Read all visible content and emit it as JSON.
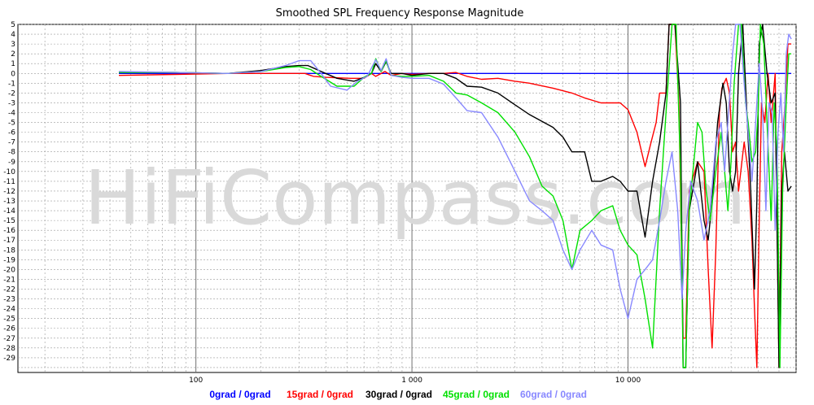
{
  "chart_data": {
    "type": "line",
    "title": "Smoothed SPL Frequency Response Magnitude",
    "xscale": "log",
    "xlim": [
      15,
      60000
    ],
    "ylim": [
      -30,
      5
    ],
    "grid": true,
    "legend_position": "bottom",
    "watermark": "HiFiCompass.com",
    "x_tick_labels": [
      {
        "value": 100,
        "label": "100"
      },
      {
        "value": 1000,
        "label": "1 000"
      },
      {
        "value": 10000,
        "label": "10 000"
      }
    ],
    "y_ticks": [
      5,
      4,
      3,
      2,
      1,
      0,
      -1,
      -2,
      -3,
      -4,
      -5,
      -6,
      -7,
      -8,
      -9,
      -10,
      -11,
      -12,
      -13,
      -14,
      -15,
      -16,
      -17,
      -18,
      -19,
      -20,
      -21,
      -22,
      -23,
      -24,
      -25,
      -26,
      -27,
      -28,
      -29
    ],
    "series": [
      {
        "name": "0grad / 0grad",
        "color": "#0000ff",
        "points": [
          [
            44,
            0
          ],
          [
            50,
            0
          ],
          [
            80,
            0
          ],
          [
            200,
            0
          ],
          [
            500,
            0
          ],
          [
            1000,
            0
          ],
          [
            2000,
            0
          ],
          [
            5000,
            0
          ],
          [
            10000,
            0
          ],
          [
            20000,
            0
          ],
          [
            45000,
            0
          ],
          [
            57000,
            0
          ]
        ]
      },
      {
        "name": "15grad / 0grad",
        "color": "#ff0000",
        "points": [
          [
            44,
            -0.2
          ],
          [
            80,
            -0.1
          ],
          [
            140,
            0
          ],
          [
            240,
            0
          ],
          [
            320,
            0
          ],
          [
            350,
            -0.3
          ],
          [
            400,
            -0.4
          ],
          [
            520,
            -0.5
          ],
          [
            600,
            -0.5
          ],
          [
            650,
            0
          ],
          [
            680,
            -0.3
          ],
          [
            750,
            0.2
          ],
          [
            800,
            -0.2
          ],
          [
            900,
            0
          ],
          [
            1000,
            -0.1
          ],
          [
            1200,
            0
          ],
          [
            1400,
            0
          ],
          [
            1600,
            0.1
          ],
          [
            1800,
            -0.3
          ],
          [
            2100,
            -0.6
          ],
          [
            2500,
            -0.5
          ],
          [
            3000,
            -0.8
          ],
          [
            3500,
            -1
          ],
          [
            4500,
            -1.5
          ],
          [
            5500,
            -2
          ],
          [
            6300,
            -2.5
          ],
          [
            7500,
            -3
          ],
          [
            8700,
            -3
          ],
          [
            9200,
            -3
          ],
          [
            10000,
            -3.7
          ],
          [
            11000,
            -6
          ],
          [
            12000,
            -9.5
          ],
          [
            12800,
            -7
          ],
          [
            13500,
            -5
          ],
          [
            14000,
            -2
          ],
          [
            15000,
            -2
          ],
          [
            15500,
            5
          ],
          [
            16500,
            5
          ],
          [
            17200,
            -3
          ],
          [
            18000,
            -27
          ],
          [
            18500,
            -27
          ],
          [
            19200,
            -12
          ],
          [
            21000,
            -9
          ],
          [
            22500,
            -10
          ],
          [
            23500,
            -20
          ],
          [
            24500,
            -28
          ],
          [
            25500,
            -18
          ],
          [
            26500,
            -4
          ],
          [
            27200,
            -1.5
          ],
          [
            28500,
            -0.5
          ],
          [
            29500,
            -2
          ],
          [
            30500,
            -8
          ],
          [
            31500,
            -7
          ],
          [
            32500,
            -12
          ],
          [
            34500,
            -7
          ],
          [
            36000,
            -10
          ],
          [
            37500,
            -17
          ],
          [
            38500,
            -24
          ],
          [
            39500,
            -30
          ],
          [
            40500,
            -15
          ],
          [
            41500,
            -3
          ],
          [
            43000,
            -5
          ],
          [
            44500,
            0
          ],
          [
            46000,
            -5
          ],
          [
            48000,
            0
          ],
          [
            50000,
            -30
          ],
          [
            51500,
            -8
          ],
          [
            53000,
            -4
          ],
          [
            55000,
            3
          ],
          [
            57000,
            3
          ]
        ]
      },
      {
        "name": "30grad / 0grad",
        "color": "#000000",
        "points": [
          [
            44,
            0.1
          ],
          [
            80,
            0.1
          ],
          [
            140,
            0
          ],
          [
            200,
            0.3
          ],
          [
            260,
            0.7
          ],
          [
            300,
            0.8
          ],
          [
            330,
            0.8
          ],
          [
            380,
            0.2
          ],
          [
            450,
            -0.5
          ],
          [
            540,
            -0.8
          ],
          [
            600,
            -0.4
          ],
          [
            650,
            0
          ],
          [
            680,
            1
          ],
          [
            720,
            0.2
          ],
          [
            760,
            1.2
          ],
          [
            800,
            0
          ],
          [
            900,
            0
          ],
          [
            1000,
            -0.2
          ],
          [
            1200,
            0
          ],
          [
            1400,
            0
          ],
          [
            1600,
            -0.5
          ],
          [
            1800,
            -1.3
          ],
          [
            2100,
            -1.4
          ],
          [
            2500,
            -2
          ],
          [
            3000,
            -3.2
          ],
          [
            3500,
            -4.2
          ],
          [
            4500,
            -5.5
          ],
          [
            5000,
            -6.5
          ],
          [
            5500,
            -8
          ],
          [
            6300,
            -8
          ],
          [
            6800,
            -11
          ],
          [
            7500,
            -11
          ],
          [
            8500,
            -10.5
          ],
          [
            9200,
            -11
          ],
          [
            10000,
            -12
          ],
          [
            11000,
            -12
          ],
          [
            12000,
            -16.7
          ],
          [
            13000,
            -11
          ],
          [
            14000,
            -7
          ],
          [
            15000,
            -2
          ],
          [
            15500,
            5
          ],
          [
            16500,
            5
          ],
          [
            17500,
            -3
          ],
          [
            18000,
            -30
          ],
          [
            18500,
            -30
          ],
          [
            19200,
            -14
          ],
          [
            21000,
            -9
          ],
          [
            22500,
            -15
          ],
          [
            23500,
            -17
          ],
          [
            24500,
            -13
          ],
          [
            26000,
            -5
          ],
          [
            27500,
            -1
          ],
          [
            28500,
            -3
          ],
          [
            29500,
            -10
          ],
          [
            30500,
            -12
          ],
          [
            31500,
            -10
          ],
          [
            32500,
            0
          ],
          [
            34000,
            5
          ],
          [
            35500,
            -4
          ],
          [
            37000,
            -12
          ],
          [
            38500,
            -22
          ],
          [
            39500,
            -13
          ],
          [
            40500,
            3
          ],
          [
            42000,
            5
          ],
          [
            44000,
            0
          ],
          [
            46000,
            -3
          ],
          [
            48000,
            -2
          ],
          [
            50000,
            -30
          ],
          [
            51500,
            -12
          ],
          [
            53000,
            -8
          ],
          [
            55000,
            -12
          ],
          [
            57000,
            -11.5
          ]
        ]
      },
      {
        "name": "45grad / 0grad",
        "color": "#00e000",
        "points": [
          [
            44,
            0.1
          ],
          [
            80,
            0.1
          ],
          [
            140,
            0
          ],
          [
            200,
            0.2
          ],
          [
            260,
            0.6
          ],
          [
            300,
            0.7
          ],
          [
            340,
            0.4
          ],
          [
            380,
            -0.3
          ],
          [
            450,
            -1.3
          ],
          [
            540,
            -1.3
          ],
          [
            600,
            -0.4
          ],
          [
            650,
            0
          ],
          [
            680,
            1.5
          ],
          [
            720,
            0.2
          ],
          [
            760,
            1.3
          ],
          [
            800,
            -0.2
          ],
          [
            900,
            -0.3
          ],
          [
            1000,
            -0.3
          ],
          [
            1200,
            -0.2
          ],
          [
            1400,
            -0.8
          ],
          [
            1600,
            -2
          ],
          [
            1800,
            -2.2
          ],
          [
            2100,
            -3
          ],
          [
            2500,
            -4
          ],
          [
            3000,
            -6
          ],
          [
            3500,
            -8.5
          ],
          [
            4000,
            -11.5
          ],
          [
            4500,
            -12.5
          ],
          [
            5000,
            -15
          ],
          [
            5500,
            -20
          ],
          [
            6000,
            -16
          ],
          [
            6800,
            -15
          ],
          [
            7500,
            -14
          ],
          [
            8500,
            -13.5
          ],
          [
            9200,
            -16
          ],
          [
            10000,
            -17.5
          ],
          [
            11000,
            -18.5
          ],
          [
            12000,
            -23
          ],
          [
            13000,
            -28
          ],
          [
            14000,
            -14
          ],
          [
            15000,
            -4
          ],
          [
            16000,
            5
          ],
          [
            16700,
            5
          ],
          [
            17500,
            -10
          ],
          [
            18000,
            -30
          ],
          [
            18500,
            -30
          ],
          [
            19200,
            -14
          ],
          [
            21000,
            -5
          ],
          [
            22000,
            -6
          ],
          [
            23000,
            -12
          ],
          [
            24000,
            -15
          ],
          [
            25500,
            -10
          ],
          [
            27000,
            -6
          ],
          [
            28000,
            -10
          ],
          [
            29000,
            -14
          ],
          [
            30000,
            -9
          ],
          [
            31000,
            -1
          ],
          [
            32500,
            5
          ],
          [
            33500,
            5
          ],
          [
            35000,
            -3
          ],
          [
            36000,
            -5
          ],
          [
            37500,
            -9
          ],
          [
            39000,
            -8
          ],
          [
            40000,
            -4
          ],
          [
            41000,
            5
          ],
          [
            42500,
            3
          ],
          [
            44000,
            -5
          ],
          [
            46000,
            -15
          ],
          [
            47500,
            -3
          ],
          [
            49000,
            -8
          ],
          [
            50500,
            -30
          ],
          [
            52000,
            -12
          ],
          [
            54000,
            -3
          ],
          [
            55500,
            2
          ],
          [
            57000,
            2
          ]
        ]
      },
      {
        "name": "60grad / 0grad",
        "color": "#8888ff",
        "points": [
          [
            44,
            0.2
          ],
          [
            80,
            0.1
          ],
          [
            140,
            0
          ],
          [
            200,
            0.2
          ],
          [
            260,
            0.8
          ],
          [
            300,
            1.3
          ],
          [
            340,
            1.3
          ],
          [
            380,
            0
          ],
          [
            420,
            -1.3
          ],
          [
            500,
            -1.7
          ],
          [
            560,
            -0.8
          ],
          [
            620,
            -0.3
          ],
          [
            680,
            1.4
          ],
          [
            720,
            0.3
          ],
          [
            760,
            1.5
          ],
          [
            800,
            -0.2
          ],
          [
            900,
            -0.4
          ],
          [
            1000,
            -0.5
          ],
          [
            1200,
            -0.5
          ],
          [
            1400,
            -1.1
          ],
          [
            1600,
            -2.5
          ],
          [
            1800,
            -3.8
          ],
          [
            2100,
            -4
          ],
          [
            2500,
            -6.5
          ],
          [
            3000,
            -10
          ],
          [
            3500,
            -13
          ],
          [
            4000,
            -14
          ],
          [
            4500,
            -15
          ],
          [
            5000,
            -18
          ],
          [
            5500,
            -20
          ],
          [
            6000,
            -18
          ],
          [
            6800,
            -16
          ],
          [
            7500,
            -17.5
          ],
          [
            8500,
            -18
          ],
          [
            9200,
            -22
          ],
          [
            10000,
            -25
          ],
          [
            11000,
            -21
          ],
          [
            12000,
            -20
          ],
          [
            13000,
            -19
          ],
          [
            14000,
            -15
          ],
          [
            15000,
            -11
          ],
          [
            16000,
            -8
          ],
          [
            17000,
            -14
          ],
          [
            17800,
            -23
          ],
          [
            18500,
            -16
          ],
          [
            19500,
            -11
          ],
          [
            21000,
            -13
          ],
          [
            22500,
            -17
          ],
          [
            24000,
            -14
          ],
          [
            25500,
            -7
          ],
          [
            27000,
            -5
          ],
          [
            28000,
            -10
          ],
          [
            29000,
            -5
          ],
          [
            30500,
            2
          ],
          [
            31500,
            5
          ],
          [
            33000,
            5
          ],
          [
            34500,
            -1
          ],
          [
            36000,
            -6
          ],
          [
            37500,
            -11
          ],
          [
            39000,
            -5
          ],
          [
            40500,
            1
          ],
          [
            42000,
            -4
          ],
          [
            43500,
            -14
          ],
          [
            45000,
            -3
          ],
          [
            46500,
            -4
          ],
          [
            48000,
            -16
          ],
          [
            49500,
            -6
          ],
          [
            51000,
            -2
          ],
          [
            52500,
            -8
          ],
          [
            54000,
            2
          ],
          [
            55500,
            4
          ],
          [
            57000,
            3.5
          ]
        ]
      }
    ]
  }
}
